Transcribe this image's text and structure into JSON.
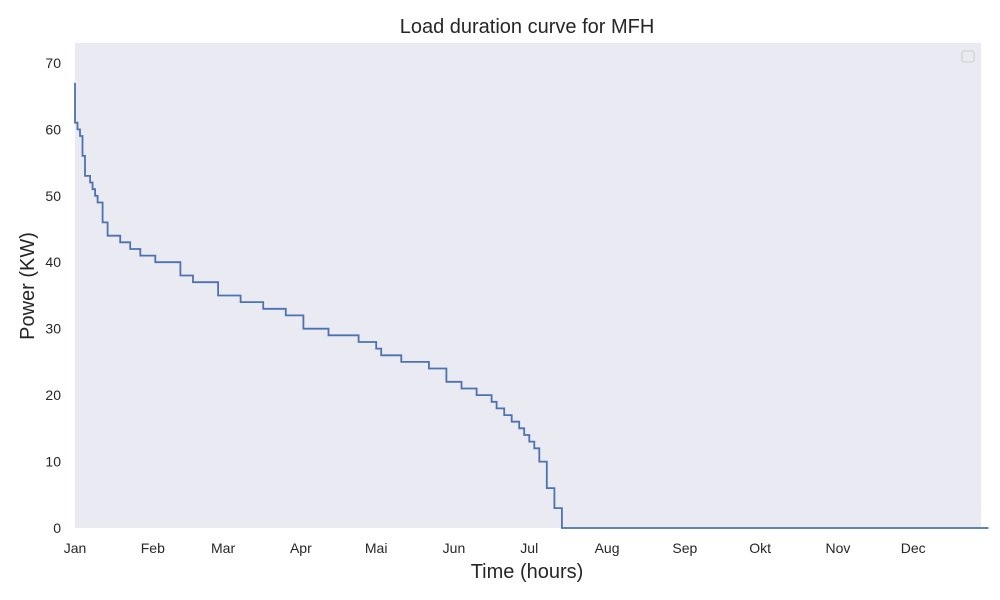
{
  "chart_data": {
    "type": "line",
    "title": "Load duration curve for MFH",
    "xlabel": "Time (hours)",
    "ylabel": "Power (KW)",
    "ylim": [
      0,
      73
    ],
    "xlim_days": [
      0,
      365
    ],
    "yticks": [
      0,
      10,
      20,
      30,
      40,
      50,
      60,
      70
    ],
    "xticks": [
      "Jan",
      "Feb",
      "Mar",
      "Apr",
      "Mai",
      "Jun",
      "Jul",
      "Aug",
      "Sep",
      "Okt",
      "Nov",
      "Dec"
    ],
    "grid": false,
    "legend": "top-right (empty)",
    "colors": {
      "background": "#eaeaf2",
      "line": "#4c72b0"
    },
    "series": [
      {
        "points": [
          [
            "Jan 1",
            67
          ],
          [
            "Jan 1",
            61
          ],
          [
            "Jan 2",
            60
          ],
          [
            "Jan 3",
            59
          ],
          [
            "Jan 4",
            58
          ],
          [
            "Jan 4",
            56
          ],
          [
            "Jan 5",
            53
          ],
          [
            "Jan 6",
            53
          ],
          [
            "Jan 7",
            52
          ],
          [
            "Jan 8",
            51
          ],
          [
            "Jan 9",
            50
          ],
          [
            "Jan 10",
            49
          ],
          [
            "Jan 12",
            46
          ],
          [
            "Jan 14",
            44
          ],
          [
            "Jan 19",
            43
          ],
          [
            "Jan 23",
            42
          ],
          [
            "Jan 27",
            41
          ],
          [
            "Feb 2",
            40
          ],
          [
            "Feb 12",
            38
          ],
          [
            "Feb 17",
            37
          ],
          [
            "Feb 27",
            35
          ],
          [
            "Mar 8",
            34
          ],
          [
            "Mar 17",
            33
          ],
          [
            "Mar 26",
            32
          ],
          [
            "Apr 2",
            30
          ],
          [
            "Apr 12",
            29
          ],
          [
            "Apr 24",
            28
          ],
          [
            "May 1",
            27
          ],
          [
            "May 3",
            26
          ],
          [
            "May 11",
            25
          ],
          [
            "May 22",
            24
          ],
          [
            "May 29",
            22
          ],
          [
            "Jun 4",
            21
          ],
          [
            "Jun 10",
            20
          ],
          [
            "Jun 16",
            19
          ],
          [
            "Jun 18",
            18
          ],
          [
            "Jun 21",
            17
          ],
          [
            "Jun 24",
            16
          ],
          [
            "Jun 27",
            15
          ],
          [
            "Jun 29",
            14
          ],
          [
            "Jul 1",
            13
          ],
          [
            "Jul 3",
            12
          ],
          [
            "Jul 5",
            10
          ],
          [
            "Jul 8",
            6
          ],
          [
            "Jul 11",
            3
          ],
          [
            "Jul 14",
            0
          ],
          [
            "Dec 31",
            0
          ]
        ]
      }
    ]
  }
}
